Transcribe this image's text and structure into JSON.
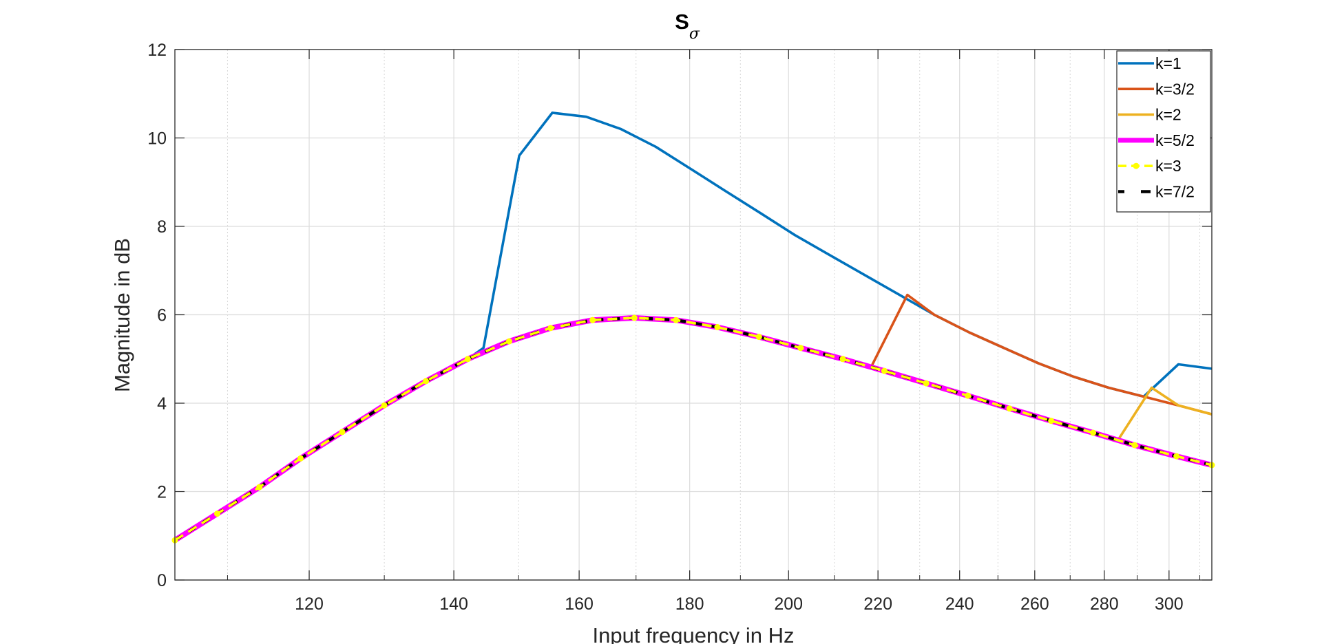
{
  "chart_data": {
    "type": "line",
    "title": "S",
    "title_subscript": "σ",
    "xlabel": "Input frequency in Hz",
    "ylabel": "Magnitude in dB",
    "x_scale": "log",
    "xlim": [
      104,
      314
    ],
    "ylim": [
      0,
      12
    ],
    "xticks": [
      120,
      140,
      160,
      180,
      200,
      220,
      240,
      260,
      280,
      300
    ],
    "xtick_labels": [
      "120",
      "140",
      "160",
      "180",
      "200",
      "220",
      "240",
      "260",
      "280",
      "300"
    ],
    "yticks": [
      0,
      2,
      4,
      6,
      8,
      10,
      12
    ],
    "ytick_labels": [
      "0",
      "2",
      "4",
      "6",
      "8",
      "10",
      "12"
    ],
    "grid": true,
    "legend_position": "top-right",
    "series": [
      {
        "name": "k=1",
        "color": "#0072BD",
        "x": [
          104,
          108.8,
          113.8,
          118.9,
          124.3,
          130,
          135.9,
          142.1,
          144.5,
          150.1,
          155.5,
          161.2,
          167.3,
          173.6,
          180.2,
          187,
          194.1,
          201.4,
          209,
          216.9,
          225.1,
          233.6,
          242.5,
          251.6,
          261.1,
          271,
          281.3,
          292,
          303,
          314
        ],
        "y": [
          0.9,
          1.5,
          2.1,
          2.75,
          3.35,
          3.95,
          4.5,
          5.0,
          5.25,
          9.6,
          10.57,
          10.48,
          10.2,
          9.8,
          9.3,
          8.8,
          8.3,
          7.8,
          7.35,
          6.9,
          6.45,
          6.0,
          5.6,
          5.25,
          4.9,
          4.6,
          4.35,
          4.15,
          4.88,
          4.78
        ]
      },
      {
        "name": "k=3/2",
        "color": "#D95319",
        "x": [
          104,
          108.8,
          113.8,
          118.9,
          124.3,
          130,
          135.9,
          142.1,
          148.5,
          155.2,
          162.3,
          169.7,
          177.4,
          185.4,
          193.8,
          202.6,
          211.9,
          218.3,
          227,
          233.6,
          242.5,
          251.6,
          261.1,
          271,
          281.3,
          292,
          303,
          314
        ],
        "y": [
          0.9,
          1.5,
          2.1,
          2.75,
          3.35,
          3.95,
          4.5,
          5.0,
          5.4,
          5.7,
          5.88,
          5.93,
          5.88,
          5.72,
          5.5,
          5.25,
          5.0,
          4.8,
          6.45,
          6.0,
          5.6,
          5.25,
          4.9,
          4.6,
          4.35,
          4.15,
          3.95,
          3.75
        ]
      },
      {
        "name": "k=2",
        "color": "#EDB120",
        "x": [
          104,
          108.8,
          113.8,
          118.9,
          124.3,
          130,
          135.9,
          142.1,
          148.5,
          155.2,
          162.3,
          169.7,
          177.4,
          185.4,
          193.8,
          202.6,
          211.9,
          221.5,
          231.6,
          242.1,
          253.1,
          264.6,
          276.7,
          284,
          294.5,
          303,
          314
        ],
        "y": [
          0.9,
          1.5,
          2.1,
          2.75,
          3.35,
          3.95,
          4.5,
          5.0,
          5.4,
          5.7,
          5.88,
          5.93,
          5.88,
          5.72,
          5.5,
          5.25,
          5.0,
          4.73,
          4.45,
          4.17,
          3.88,
          3.6,
          3.33,
          3.15,
          4.35,
          3.95,
          3.75
        ]
      },
      {
        "name": "k=5/2",
        "color": "#FF00FF",
        "x": [
          104,
          108.8,
          113.8,
          118.9,
          124.3,
          130,
          135.9,
          142.1,
          148.5,
          155.2,
          162.3,
          169.7,
          177.4,
          185.4,
          193.8,
          202.6,
          211.9,
          221.5,
          231.6,
          242.1,
          253.1,
          264.6,
          276.7,
          289.2,
          302.4,
          314
        ],
        "y": [
          0.9,
          1.5,
          2.1,
          2.75,
          3.35,
          3.95,
          4.5,
          5.0,
          5.4,
          5.7,
          5.88,
          5.93,
          5.88,
          5.72,
          5.5,
          5.25,
          5.0,
          4.73,
          4.45,
          4.17,
          3.88,
          3.6,
          3.33,
          3.05,
          2.8,
          2.6
        ]
      },
      {
        "name": "k=3",
        "color": "#FFFF00",
        "x": [
          104,
          108.8,
          113.8,
          118.9,
          124.3,
          130,
          135.9,
          142.1,
          148.5,
          155.2,
          162.3,
          169.7,
          177.4,
          185.4,
          193.8,
          202.6,
          211.9,
          221.5,
          231.6,
          242.1,
          253.1,
          264.6,
          276.7,
          289.2,
          302.4,
          314
        ],
        "y": [
          0.9,
          1.5,
          2.1,
          2.75,
          3.35,
          3.95,
          4.5,
          5.0,
          5.4,
          5.7,
          5.88,
          5.93,
          5.88,
          5.72,
          5.5,
          5.25,
          5.0,
          4.73,
          4.45,
          4.17,
          3.88,
          3.6,
          3.33,
          3.05,
          2.8,
          2.6
        ]
      },
      {
        "name": "k=7/2",
        "color": "#000000",
        "x": [
          104,
          108.8,
          113.8,
          118.9,
          124.3,
          130,
          135.9,
          142.1,
          148.5,
          155.2,
          162.3,
          169.7,
          177.4,
          185.4,
          193.8,
          202.6,
          211.9,
          221.5,
          231.6,
          242.1,
          253.1,
          264.6,
          276.7,
          289.2,
          302.4,
          314
        ],
        "y": [
          0.9,
          1.5,
          2.1,
          2.75,
          3.35,
          3.95,
          4.5,
          5.0,
          5.4,
          5.7,
          5.88,
          5.93,
          5.88,
          5.72,
          5.5,
          5.25,
          5.0,
          4.73,
          4.45,
          4.17,
          3.88,
          3.6,
          3.33,
          3.05,
          2.8,
          2.6
        ]
      }
    ]
  }
}
